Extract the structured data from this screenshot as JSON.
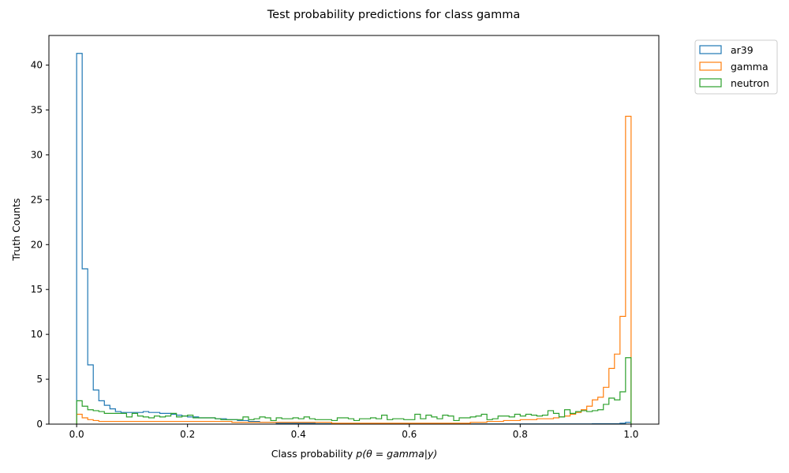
{
  "chart_data": {
    "type": "histogram-step",
    "title": "Test probability predictions for class gamma",
    "xlabel_prefix": "Class probability ",
    "xlabel_math": "p(θ = gamma|y)",
    "ylabel": "Truth Counts",
    "xlim": [
      -0.05,
      1.05
    ],
    "ylim": [
      0,
      43.3
    ],
    "x_ticks": [
      0.0,
      0.2,
      0.4,
      0.6,
      0.8,
      1.0
    ],
    "x_tick_labels": [
      "0.0",
      "0.2",
      "0.4",
      "0.6",
      "0.8",
      "1.0"
    ],
    "y_ticks": [
      0,
      5,
      10,
      15,
      20,
      25,
      30,
      35,
      40
    ],
    "y_tick_labels": [
      "0",
      "5",
      "10",
      "15",
      "20",
      "25",
      "30",
      "35",
      "40"
    ],
    "bins": {
      "start": 0.0,
      "end": 1.0,
      "count": 100
    },
    "legend_position": "upper-right-outside",
    "series": [
      {
        "name": "ar39",
        "color": "#1f77b4",
        "values": [
          41.3,
          17.3,
          6.6,
          3.8,
          2.6,
          2.1,
          1.7,
          1.4,
          1.3,
          1.3,
          1.3,
          1.3,
          1.4,
          1.3,
          1.3,
          1.2,
          1.2,
          1.1,
          1.0,
          0.9,
          0.8,
          0.8,
          0.7,
          0.7,
          0.7,
          0.6,
          0.6,
          0.5,
          0.5,
          0.4,
          0.4,
          0.3,
          0.3,
          0.2,
          0.2,
          0.2,
          0.1,
          0.1,
          0.1,
          0.1,
          0.1,
          0.1,
          0.1,
          0.05,
          0.05,
          0.05,
          0.05,
          0.05,
          0.03,
          0.03,
          0.03,
          0.03,
          0.03,
          0.03,
          0.02,
          0.02,
          0.02,
          0.02,
          0.02,
          0.02,
          0.02,
          0.02,
          0.02,
          0.02,
          0.02,
          0.02,
          0.02,
          0.02,
          0.02,
          0.02,
          0.02,
          0.02,
          0.02,
          0.02,
          0.02,
          0.02,
          0.02,
          0.02,
          0.02,
          0.02,
          0.02,
          0.02,
          0.02,
          0.02,
          0.02,
          0.02,
          0.02,
          0.02,
          0.02,
          0.02,
          0.02,
          0.02,
          0.02,
          0.05,
          0.05,
          0.05,
          0.05,
          0.05,
          0.1,
          0.2
        ]
      },
      {
        "name": "gamma",
        "color": "#ff7f0e",
        "values": [
          1.1,
          0.7,
          0.5,
          0.4,
          0.3,
          0.3,
          0.3,
          0.3,
          0.3,
          0.3,
          0.3,
          0.3,
          0.3,
          0.3,
          0.3,
          0.3,
          0.3,
          0.3,
          0.3,
          0.3,
          0.3,
          0.3,
          0.3,
          0.3,
          0.3,
          0.3,
          0.3,
          0.3,
          0.2,
          0.2,
          0.2,
          0.2,
          0.2,
          0.2,
          0.2,
          0.2,
          0.2,
          0.2,
          0.2,
          0.2,
          0.2,
          0.2,
          0.2,
          0.2,
          0.2,
          0.2,
          0.1,
          0.1,
          0.1,
          0.1,
          0.1,
          0.1,
          0.1,
          0.1,
          0.1,
          0.1,
          0.1,
          0.1,
          0.1,
          0.1,
          0.1,
          0.1,
          0.1,
          0.1,
          0.1,
          0.1,
          0.1,
          0.1,
          0.1,
          0.1,
          0.1,
          0.2,
          0.2,
          0.2,
          0.3,
          0.3,
          0.3,
          0.4,
          0.4,
          0.4,
          0.5,
          0.5,
          0.5,
          0.6,
          0.6,
          0.6,
          0.7,
          0.8,
          0.9,
          1.1,
          1.3,
          1.6,
          2.0,
          2.7,
          3.0,
          4.1,
          6.2,
          7.8,
          12.0,
          34.3
        ]
      },
      {
        "name": "neutron",
        "color": "#2ca02c",
        "values": [
          2.6,
          2.0,
          1.6,
          1.5,
          1.4,
          1.2,
          1.2,
          1.2,
          1.2,
          0.8,
          1.2,
          0.9,
          0.8,
          0.7,
          0.9,
          0.8,
          0.9,
          1.2,
          0.8,
          0.9,
          1.0,
          0.7,
          0.7,
          0.7,
          0.7,
          0.6,
          0.5,
          0.5,
          0.5,
          0.5,
          0.8,
          0.5,
          0.6,
          0.8,
          0.7,
          0.4,
          0.7,
          0.6,
          0.6,
          0.7,
          0.6,
          0.8,
          0.6,
          0.5,
          0.5,
          0.5,
          0.4,
          0.7,
          0.7,
          0.6,
          0.4,
          0.6,
          0.6,
          0.7,
          0.6,
          1.0,
          0.5,
          0.6,
          0.6,
          0.5,
          0.5,
          1.1,
          0.6,
          1.0,
          0.8,
          0.6,
          1.0,
          0.9,
          0.4,
          0.7,
          0.7,
          0.8,
          0.9,
          1.1,
          0.5,
          0.6,
          0.9,
          0.9,
          0.8,
          1.1,
          0.9,
          1.1,
          1.0,
          0.9,
          1.0,
          1.5,
          1.2,
          0.8,
          1.6,
          1.2,
          1.4,
          1.5,
          1.4,
          1.5,
          1.6,
          2.2,
          2.9,
          2.7,
          3.6,
          7.4
        ]
      }
    ]
  }
}
